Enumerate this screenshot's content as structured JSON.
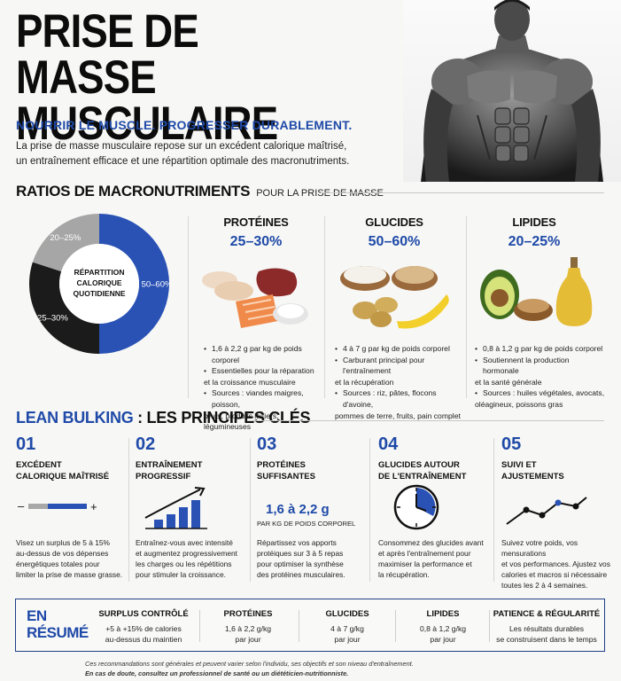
{
  "header": {
    "title_line1": "PRISE DE",
    "title_line2": "MASSE MUSCULAIRE",
    "tagline": "NOURRIR LE MUSCLE. PROGRESSER DURABLEMENT.",
    "intro_line1": "La prise de masse musculaire repose sur un excédent calorique maîtrisé,",
    "intro_line2": "un entraînement efficace et une répartition optimale des macronutriments."
  },
  "macros_section": {
    "title": "RATIOS DE MACRONUTRIMENTS",
    "subtitle": "POUR LA PRISE DE MASSE"
  },
  "chart_data": {
    "type": "pie",
    "center_label": [
      "RÉPARTITION",
      "CALORIQUE",
      "QUOTIDIENNE"
    ],
    "slices": [
      {
        "label": "50–60%",
        "value": 50,
        "color": "#2a52b5"
      },
      {
        "label": "25–30%",
        "value": 30,
        "color": "#1b1b1b"
      },
      {
        "label": "20–25%",
        "value": 20,
        "color": "#a6a6a6"
      }
    ]
  },
  "macros": [
    {
      "name": "PROTÉINES",
      "pct": "25–30%",
      "bullets": [
        [
          "1,6 à 2,2 g par kg de poids corporel"
        ],
        [
          "Essentielles pour la réparation",
          "et la croissance musculaire"
        ],
        [
          "Sources : viandes maigres, poisson,",
          "œufs, produits laitiers, légumineuses"
        ]
      ]
    },
    {
      "name": "GLUCIDES",
      "pct": "50–60%",
      "bullets": [
        [
          "4 à 7 g par kg de poids corporel"
        ],
        [
          "Carburant principal pour l'entraînement",
          "et la récupération"
        ],
        [
          "Sources : riz, pâtes, flocons d'avoine,",
          "pommes de terre, fruits, pain complet"
        ]
      ]
    },
    {
      "name": "LIPIDES",
      "pct": "20–25%",
      "bullets": [
        [
          "0,8 à 1,2 g par kg de poids corporel"
        ],
        [
          "Soutiennent la production hormonale",
          "et la santé générale"
        ],
        [
          "Sources : huiles végétales, avocats,",
          "oléagineux, poissons gras"
        ]
      ]
    }
  ],
  "principles_section": {
    "title_blue": "LEAN BULKING",
    "title_sep": ":",
    "title_rest": "LES PRINCIPES CLÉS"
  },
  "principles": [
    {
      "num": "01",
      "title": [
        "EXCÉDENT",
        "CALORIQUE MAÎTRISÉ"
      ],
      "desc": [
        "Visez un surplus de 5 à 15%",
        "au-dessus de vos dépenses",
        "énergétiques totales pour",
        "limiter la prise de masse grasse."
      ]
    },
    {
      "num": "02",
      "title": [
        "ENTRAÎNEMENT",
        "PROGRESSIF"
      ],
      "desc": [
        "Entraînez-vous avec intensité",
        "et augmentez progressivement",
        "les charges ou les répétitions",
        "pour stimuler la croissance."
      ]
    },
    {
      "num": "03",
      "title": [
        "PROTÉINES",
        "SUFFISANTES"
      ],
      "big_value": "1,6 à 2,2 g",
      "big_caption": "PAR KG DE POIDS CORPOREL",
      "desc": [
        "Répartissez vos apports",
        "protéiques sur 3 à 5 repas",
        "pour optimiser la synthèse",
        "des protéines musculaires."
      ]
    },
    {
      "num": "04",
      "title": [
        "GLUCIDES AUTOUR",
        "DE L'ENTRAÎNEMENT"
      ],
      "desc": [
        "Consommez des glucides avant",
        "et après l'entraînement pour",
        "maximiser la performance et",
        "la récupération."
      ]
    },
    {
      "num": "05",
      "title": [
        "SUIVI ET",
        "AJUSTEMENTS"
      ],
      "desc": [
        "Suivez votre poids, vos mensurations",
        "et vos performances. Ajustez vos",
        "calories et macros si nécessaire",
        "toutes les 2 à 4 semaines."
      ]
    }
  ],
  "summary": {
    "label_line1": "EN",
    "label_line2": "RÉSUMÉ",
    "cols": [
      {
        "head": "SURPLUS CONTRÔLÉ",
        "text": [
          "+5 à +15% de calories",
          "au-dessus du maintien"
        ]
      },
      {
        "head": "PROTÉINES",
        "text": [
          "1,6 à 2,2 g/kg",
          "par jour"
        ]
      },
      {
        "head": "GLUCIDES",
        "text": [
          "4 à 7 g/kg",
          "par jour"
        ]
      },
      {
        "head": "LIPIDES",
        "text": [
          "0,8 à 1,2 g/kg",
          "par jour"
        ]
      },
      {
        "head": "PATIENCE & RÉGULARITÉ",
        "text": [
          "Les résultats durables",
          "se construisent dans le temps"
        ]
      }
    ]
  },
  "footer": {
    "line1": "Ces recommandations sont générales et peuvent varier selon l'individu, ses objectifs et son niveau d'entraînement.",
    "line2": "En cas de doute, consultez un professionnel de santé ou un diététicien-nutritionniste."
  },
  "colors": {
    "accent": "#1f4aa8",
    "dark": "#111111",
    "grey": "#a6a6a6"
  }
}
